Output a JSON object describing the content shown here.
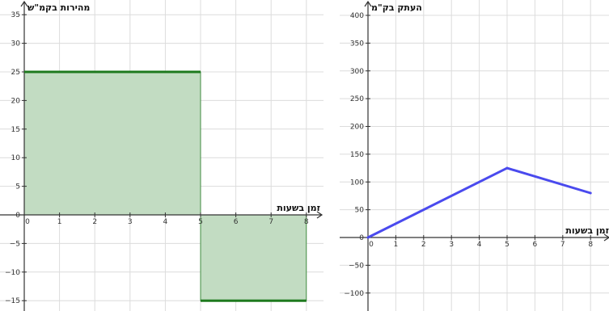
{
  "chart_data": [
    {
      "type": "area",
      "ylabel": "מהירות בקמ\"ש",
      "xlabel": "זמן בשעות",
      "xlim": [
        0,
        8
      ],
      "ylim": [
        -16,
        35
      ],
      "x_ticks": [
        0,
        1,
        2,
        3,
        4,
        5,
        6,
        7,
        8
      ],
      "y_ticks": [
        -15,
        -10,
        -5,
        0,
        5,
        10,
        15,
        20,
        25,
        30,
        35
      ],
      "grid": true,
      "segments": [
        {
          "x_start": 0,
          "x_end": 5,
          "y": 25
        },
        {
          "x_start": 5,
          "x_end": 8,
          "y": -15
        }
      ],
      "colors": {
        "fill": "#c2dcc2",
        "line": "#1e7a1e",
        "grid": "#dcdcdc",
        "axis": "#333333"
      }
    },
    {
      "type": "line",
      "ylabel": "העתק בק\"מ",
      "xlabel": "זמן בשעות",
      "xlim": [
        0,
        8
      ],
      "ylim": [
        -115,
        400
      ],
      "x_ticks": [
        0,
        1,
        2,
        3,
        4,
        5,
        6,
        7,
        8
      ],
      "y_ticks": [
        -100,
        -50,
        0,
        50,
        100,
        150,
        200,
        250,
        300,
        350,
        400
      ],
      "grid": true,
      "points": [
        [
          0,
          0
        ],
        [
          5,
          125
        ],
        [
          8,
          80
        ]
      ],
      "colors": {
        "line": "#4a4aee",
        "grid": "#dcdcdc",
        "axis": "#333333"
      }
    }
  ]
}
